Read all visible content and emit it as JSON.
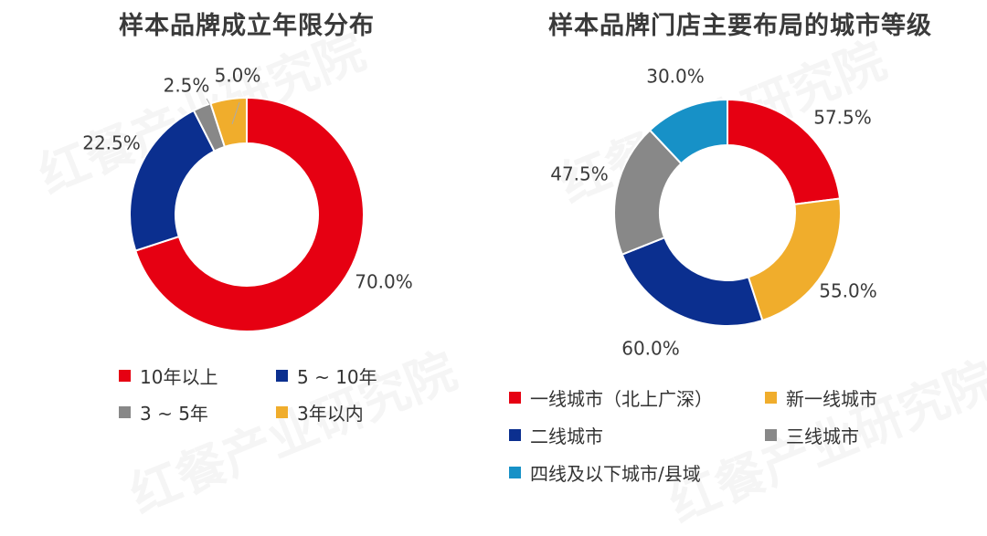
{
  "watermark_text": "红餐产业研究院",
  "chart_data": [
    {
      "type": "pie",
      "title": "样本品牌成立年限分布",
      "series": [
        {
          "name": "10年以上",
          "value": 70.0,
          "label": "70.0%",
          "color": "#e60012"
        },
        {
          "name": "5 ~ 10年",
          "value": 22.5,
          "label": "22.5%",
          "color": "#0b2f8f"
        },
        {
          "name": "3 ~ 5年",
          "value": 2.5,
          "label": "2.5%",
          "color": "#888888"
        },
        {
          "name": "3年以内",
          "value": 5.0,
          "label": "5.0%",
          "color": "#f0ad2c"
        }
      ],
      "legend": "bottom"
    },
    {
      "type": "pie",
      "title": "样本品牌门店主要布局的城市等级",
      "series": [
        {
          "name": "一线城市（北上广深）",
          "value": 57.5,
          "label": "57.5%",
          "color": "#e60012"
        },
        {
          "name": "新一线城市",
          "value": 55.0,
          "label": "55.0%",
          "color": "#f0ad2c"
        },
        {
          "name": "二线城市",
          "value": 60.0,
          "label": "60.0%",
          "color": "#0b2f8f"
        },
        {
          "name": "三线城市",
          "value": 47.5,
          "label": "47.5%",
          "color": "#888888"
        },
        {
          "name": "四线及以下城市/县域",
          "value": 30.0,
          "label": "30.0%",
          "color": "#1791c7"
        }
      ],
      "legend": "bottom"
    }
  ]
}
